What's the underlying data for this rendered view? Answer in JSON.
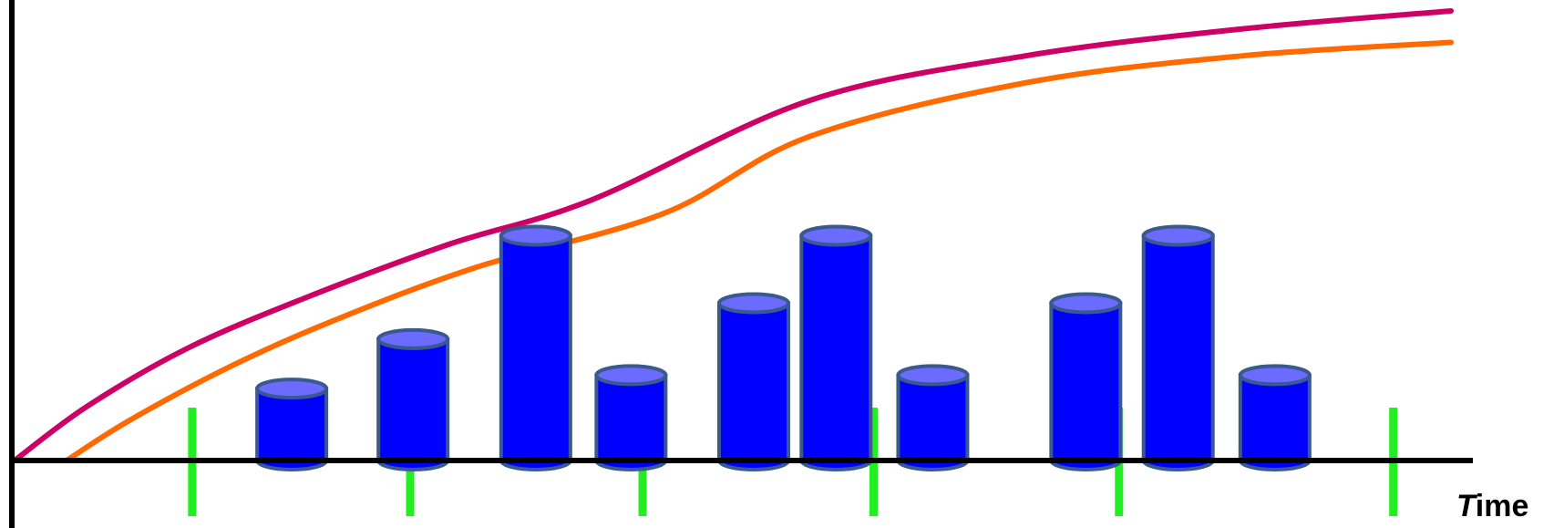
{
  "chart_data": {
    "type": "bar",
    "bar_style": "cylinder",
    "xlabel_first": "T",
    "xlabel_rest": "ime",
    "x_domain": [
      0,
      100
    ],
    "y_domain": [
      0,
      100
    ],
    "bars": [
      {
        "x": 19.2,
        "value": 16
      },
      {
        "x": 27.6,
        "value": 27
      },
      {
        "x": 36.1,
        "value": 50
      },
      {
        "x": 42.7,
        "value": 19
      },
      {
        "x": 51.2,
        "value": 35
      },
      {
        "x": 56.9,
        "value": 50
      },
      {
        "x": 63.6,
        "value": 19
      },
      {
        "x": 74.2,
        "value": 35
      },
      {
        "x": 80.6,
        "value": 50
      },
      {
        "x": 87.3,
        "value": 19
      }
    ],
    "markers": [
      12.3,
      27.4,
      43.5,
      59.5,
      76.5,
      95.5
    ],
    "series": [
      {
        "points": [
          [
            0,
            0
          ],
          [
            5,
            12
          ],
          [
            12,
            25
          ],
          [
            20,
            36
          ],
          [
            30,
            48
          ],
          [
            40,
            58
          ],
          [
            55,
            80
          ],
          [
            70,
            90
          ],
          [
            85,
            96
          ],
          [
            99.5,
            100
          ]
        ]
      },
      {
        "points": [
          [
            3.6,
            0
          ],
          [
            8,
            9
          ],
          [
            15,
            21
          ],
          [
            22,
            31
          ],
          [
            32,
            43
          ],
          [
            45,
            55
          ],
          [
            55,
            72
          ],
          [
            70,
            84
          ],
          [
            85,
            90
          ],
          [
            99.5,
            93
          ]
        ]
      }
    ],
    "colors": {
      "bar_fill": "#0000ff",
      "bar_top": "#6b6bff",
      "bar_outline": "#3a5a8f",
      "marker": "#22ee22",
      "series_1": "#cc0066",
      "series_2": "#ff6a00",
      "axis": "#000000"
    }
  }
}
